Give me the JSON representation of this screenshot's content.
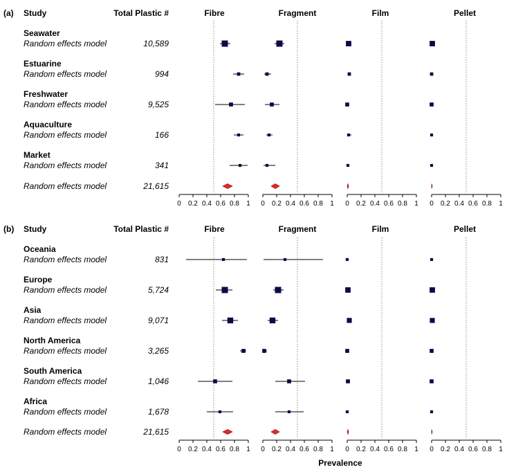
{
  "chart_data": {
    "type": "forest",
    "xlabel": "Prevalence",
    "xlim": [
      0,
      1
    ],
    "x_ticks": [
      "0",
      "0.2",
      "0.4",
      "0.6",
      "0.8",
      "1"
    ],
    "reference_line": 0.5,
    "columns": [
      "Fibre",
      "Fragment",
      "Film",
      "Pellet"
    ],
    "headers": {
      "study": "Study",
      "total": "Total Plastic #"
    },
    "model_label": "Random effects model",
    "panels": [
      {
        "label": "(a)",
        "groups": [
          {
            "name": "Seawater",
            "total": "10,589",
            "estimates": [
              {
                "est": 0.66,
                "lo": 0.59,
                "hi": 0.74,
                "w": 1.0
              },
              {
                "est": 0.24,
                "lo": 0.17,
                "hi": 0.31,
                "w": 1.0
              },
              {
                "est": 0.02,
                "lo": 0.01,
                "hi": 0.03,
                "w": 0.8
              },
              {
                "est": 0.01,
                "lo": 0.0,
                "hi": 0.02,
                "w": 0.8
              }
            ]
          },
          {
            "name": "Estuarine",
            "total": "994",
            "estimates": [
              {
                "est": 0.86,
                "lo": 0.78,
                "hi": 0.94,
                "w": 0.3
              },
              {
                "est": 0.06,
                "lo": 0.02,
                "hi": 0.12,
                "w": 0.3
              },
              {
                "est": 0.03,
                "lo": 0.01,
                "hi": 0.05,
                "w": 0.3
              },
              {
                "est": 0.0,
                "lo": 0.0,
                "hi": 0.01,
                "w": 0.3
              }
            ]
          },
          {
            "name": "Freshwater",
            "total": "9,525",
            "estimates": [
              {
                "est": 0.75,
                "lo": 0.52,
                "hi": 0.95,
                "w": 0.45
              },
              {
                "est": 0.13,
                "lo": 0.03,
                "hi": 0.24,
                "w": 0.45
              },
              {
                "est": 0.0,
                "lo": 0.0,
                "hi": 0.01,
                "w": 0.45
              },
              {
                "est": 0.0,
                "lo": 0.0,
                "hi": 0.01,
                "w": 0.45
              }
            ]
          },
          {
            "name": "Aquaculture",
            "total": "166",
            "estimates": [
              {
                "est": 0.86,
                "lo": 0.79,
                "hi": 0.93,
                "w": 0.2
              },
              {
                "est": 0.09,
                "lo": 0.05,
                "hi": 0.14,
                "w": 0.2
              },
              {
                "est": 0.02,
                "lo": 0.0,
                "hi": 0.06,
                "w": 0.2
              },
              {
                "est": 0.0,
                "lo": 0.0,
                "hi": 0.01,
                "w": 0.2
              }
            ]
          },
          {
            "name": "Market",
            "total": "341",
            "estimates": [
              {
                "est": 0.88,
                "lo": 0.73,
                "hi": 0.99,
                "w": 0.2
              },
              {
                "est": 0.06,
                "lo": 0.01,
                "hi": 0.18,
                "w": 0.2
              },
              {
                "est": 0.01,
                "lo": 0.0,
                "hi": 0.03,
                "w": 0.2
              },
              {
                "est": 0.0,
                "lo": 0.0,
                "hi": 0.01,
                "w": 0.2
              }
            ]
          }
        ],
        "overall": {
          "total": "21,615",
          "estimates": [
            {
              "est": 0.7,
              "lo": 0.63,
              "hi": 0.77
            },
            {
              "est": 0.18,
              "lo": 0.12,
              "hi": 0.24
            },
            {
              "est": 0.01,
              "lo": 0.0,
              "hi": 0.02
            },
            {
              "est": 0.0,
              "lo": 0.0,
              "hi": 0.01
            }
          ]
        }
      },
      {
        "label": "(b)",
        "groups": [
          {
            "name": "Oceania",
            "total": "831",
            "estimates": [
              {
                "est": 0.64,
                "lo": 0.1,
                "hi": 0.98,
                "w": 0.2
              },
              {
                "est": 0.32,
                "lo": 0.01,
                "hi": 0.87,
                "w": 0.2
              },
              {
                "est": 0.0,
                "lo": 0.0,
                "hi": 0.02,
                "w": 0.2
              },
              {
                "est": 0.0,
                "lo": 0.0,
                "hi": 0.01,
                "w": 0.2
              }
            ]
          },
          {
            "name": "Europe",
            "total": "5,724",
            "estimates": [
              {
                "est": 0.66,
                "lo": 0.53,
                "hi": 0.77,
                "w": 1.0
              },
              {
                "est": 0.22,
                "lo": 0.15,
                "hi": 0.3,
                "w": 1.0
              },
              {
                "est": 0.01,
                "lo": 0.0,
                "hi": 0.03,
                "w": 0.8
              },
              {
                "est": 0.01,
                "lo": 0.0,
                "hi": 0.02,
                "w": 0.8
              }
            ]
          },
          {
            "name": "Asia",
            "total": "9,071",
            "estimates": [
              {
                "est": 0.74,
                "lo": 0.62,
                "hi": 0.85,
                "w": 0.9
              },
              {
                "est": 0.14,
                "lo": 0.07,
                "hi": 0.22,
                "w": 0.9
              },
              {
                "est": 0.03,
                "lo": 0.01,
                "hi": 0.05,
                "w": 0.7
              },
              {
                "est": 0.01,
                "lo": 0.0,
                "hi": 0.03,
                "w": 0.7
              }
            ]
          },
          {
            "name": "North America",
            "total": "3,265",
            "estimates": [
              {
                "est": 0.93,
                "lo": 0.88,
                "hi": 0.97,
                "w": 0.45
              },
              {
                "est": 0.02,
                "lo": 0.0,
                "hi": 0.06,
                "w": 0.45
              },
              {
                "est": 0.0,
                "lo": 0.0,
                "hi": 0.01,
                "w": 0.45
              },
              {
                "est": 0.0,
                "lo": 0.0,
                "hi": 0.01,
                "w": 0.45
              }
            ]
          },
          {
            "name": "South America",
            "total": "1,046",
            "estimates": [
              {
                "est": 0.52,
                "lo": 0.27,
                "hi": 0.77,
                "w": 0.45
              },
              {
                "est": 0.38,
                "lo": 0.18,
                "hi": 0.61,
                "w": 0.45
              },
              {
                "est": 0.01,
                "lo": 0.0,
                "hi": 0.04,
                "w": 0.45
              },
              {
                "est": 0.0,
                "lo": 0.0,
                "hi": 0.01,
                "w": 0.45
              }
            ]
          },
          {
            "name": "Africa",
            "total": "1,678",
            "estimates": [
              {
                "est": 0.59,
                "lo": 0.4,
                "hi": 0.78,
                "w": 0.2
              },
              {
                "est": 0.38,
                "lo": 0.18,
                "hi": 0.59,
                "w": 0.2
              },
              {
                "est": 0.0,
                "lo": 0.0,
                "hi": 0.01,
                "w": 0.2
              },
              {
                "est": 0.0,
                "lo": 0.0,
                "hi": 0.01,
                "w": 0.2
              }
            ]
          }
        ],
        "overall": {
          "total": "21,615",
          "estimates": [
            {
              "est": 0.7,
              "lo": 0.63,
              "hi": 0.77
            },
            {
              "est": 0.18,
              "lo": 0.12,
              "hi": 0.24
            },
            {
              "est": 0.01,
              "lo": 0.0,
              "hi": 0.02
            },
            {
              "est": 0.0,
              "lo": 0.0,
              "hi": 0.01
            }
          ]
        }
      }
    ]
  },
  "colors": {
    "square": "#0b0b4a",
    "ci_line": "#000000",
    "diamond_fill": "#e32b23",
    "diamond_stroke": "#8b0000",
    "ref_line": "#888888"
  }
}
